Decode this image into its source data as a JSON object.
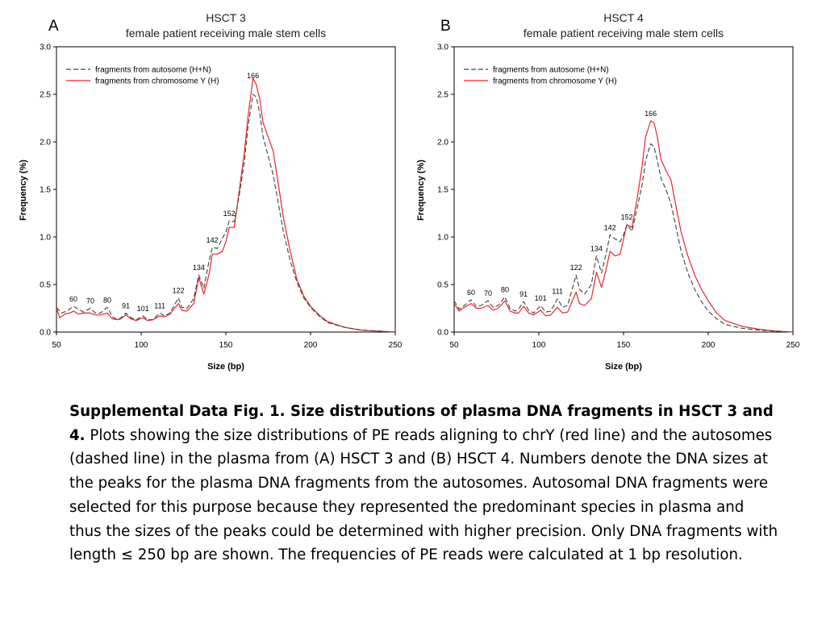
{
  "chart_data": [
    {
      "panel": "A",
      "type": "line",
      "title": "HSCT 3",
      "subtitle": "female patient receiving male stem cells",
      "xlabel": "Size (bp)",
      "ylabel": "Frequency (%)",
      "xlim": [
        50,
        250
      ],
      "ylim": [
        0,
        3.0
      ],
      "xticks": [
        50,
        100,
        150,
        200,
        250
      ],
      "yticks": [
        "0.0",
        "0.5",
        "1.0",
        "1.5",
        "2.0",
        "2.5",
        "3.0"
      ],
      "grid": false,
      "legend_position": "top-left",
      "series": [
        {
          "name": "fragments from autosome (H+N)",
          "color": "#404040",
          "dash": true,
          "points": [
            [
              50,
              0.26
            ],
            [
              53,
              0.2
            ],
            [
              56,
              0.22
            ],
            [
              60,
              0.27
            ],
            [
              63,
              0.24
            ],
            [
              66,
              0.21
            ],
            [
              70,
              0.25
            ],
            [
              73,
              0.2
            ],
            [
              76,
              0.2
            ],
            [
              80,
              0.26
            ],
            [
              83,
              0.16
            ],
            [
              86,
              0.13
            ],
            [
              88,
              0.15
            ],
            [
              91,
              0.2
            ],
            [
              94,
              0.15
            ],
            [
              97,
              0.13
            ],
            [
              101,
              0.17
            ],
            [
              104,
              0.13
            ],
            [
              107,
              0.13
            ],
            [
              111,
              0.2
            ],
            [
              114,
              0.17
            ],
            [
              117,
              0.2
            ],
            [
              122,
              0.36
            ],
            [
              124,
              0.26
            ],
            [
              127,
              0.25
            ],
            [
              131,
              0.35
            ],
            [
              134,
              0.6
            ],
            [
              137,
              0.46
            ],
            [
              140,
              0.74
            ],
            [
              142,
              0.89
            ],
            [
              145,
              0.88
            ],
            [
              148,
              0.99
            ],
            [
              150,
              1.05
            ],
            [
              152,
              1.17
            ],
            [
              155,
              1.16
            ],
            [
              158,
              1.45
            ],
            [
              161,
              1.8
            ],
            [
              163,
              2.15
            ],
            [
              166,
              2.5
            ],
            [
              168,
              2.47
            ],
            [
              170,
              2.3
            ],
            [
              172,
              2.05
            ],
            [
              175,
              1.85
            ],
            [
              178,
              1.65
            ],
            [
              181,
              1.35
            ],
            [
              184,
              1.05
            ],
            [
              188,
              0.75
            ],
            [
              192,
              0.52
            ],
            [
              196,
              0.36
            ],
            [
              200,
              0.26
            ],
            [
              205,
              0.17
            ],
            [
              210,
              0.1
            ],
            [
              220,
              0.05
            ],
            [
              230,
              0.02
            ],
            [
              240,
              0.01
            ],
            [
              250,
              0.0
            ]
          ]
        },
        {
          "name": "fragments from chromosome Y (H)",
          "color": "#e8262b",
          "dash": false,
          "points": [
            [
              50,
              0.25
            ],
            [
              52,
              0.15
            ],
            [
              55,
              0.19
            ],
            [
              58,
              0.2
            ],
            [
              60,
              0.22
            ],
            [
              63,
              0.19
            ],
            [
              66,
              0.2
            ],
            [
              70,
              0.2
            ],
            [
              73,
              0.18
            ],
            [
              76,
              0.18
            ],
            [
              80,
              0.2
            ],
            [
              83,
              0.14
            ],
            [
              86,
              0.13
            ],
            [
              88,
              0.14
            ],
            [
              91,
              0.18
            ],
            [
              94,
              0.14
            ],
            [
              97,
              0.12
            ],
            [
              101,
              0.15
            ],
            [
              104,
              0.12
            ],
            [
              107,
              0.13
            ],
            [
              111,
              0.17
            ],
            [
              114,
              0.16
            ],
            [
              117,
              0.19
            ],
            [
              122,
              0.3
            ],
            [
              124,
              0.23
            ],
            [
              127,
              0.22
            ],
            [
              131,
              0.3
            ],
            [
              134,
              0.57
            ],
            [
              137,
              0.4
            ],
            [
              140,
              0.6
            ],
            [
              142,
              0.82
            ],
            [
              145,
              0.82
            ],
            [
              148,
              0.85
            ],
            [
              150,
              0.95
            ],
            [
              152,
              1.1
            ],
            [
              155,
              1.1
            ],
            [
              158,
              1.5
            ],
            [
              161,
              1.9
            ],
            [
              163,
              2.25
            ],
            [
              166,
              2.67
            ],
            [
              168,
              2.6
            ],
            [
              170,
              2.45
            ],
            [
              172,
              2.2
            ],
            [
              175,
              2.05
            ],
            [
              178,
              1.9
            ],
            [
              181,
              1.55
            ],
            [
              184,
              1.2
            ],
            [
              188,
              0.85
            ],
            [
              192,
              0.55
            ],
            [
              196,
              0.38
            ],
            [
              200,
              0.27
            ],
            [
              205,
              0.18
            ],
            [
              210,
              0.11
            ],
            [
              220,
              0.05
            ],
            [
              230,
              0.02
            ],
            [
              240,
              0.01
            ],
            [
              250,
              0.0
            ]
          ]
        }
      ],
      "annotations": [
        [
          60,
          0.27,
          "60"
        ],
        [
          70,
          0.25,
          "70"
        ],
        [
          80,
          0.26,
          "80"
        ],
        [
          91,
          0.2,
          "91"
        ],
        [
          101,
          0.17,
          "101"
        ],
        [
          111,
          0.2,
          "111"
        ],
        [
          122,
          0.36,
          "122"
        ],
        [
          134,
          0.6,
          "134"
        ],
        [
          142,
          0.89,
          "142"
        ],
        [
          152,
          1.17,
          "152"
        ],
        [
          166,
          2.62,
          "166"
        ]
      ]
    },
    {
      "panel": "B",
      "type": "line",
      "title": "HSCT 4",
      "subtitle": "female patient receiving male stem cells",
      "xlabel": "Size (bp)",
      "ylabel": "Frequency (%)",
      "xlim": [
        50,
        250
      ],
      "ylim": [
        0,
        3.0
      ],
      "xticks": [
        50,
        100,
        150,
        200,
        250
      ],
      "yticks": [
        "0.0",
        "0.5",
        "1.0",
        "1.5",
        "2.0",
        "2.5",
        "3.0"
      ],
      "grid": false,
      "legend_position": "top-left",
      "series": [
        {
          "name": "fragments from autosome (H+N)",
          "color": "#404040",
          "dash": true,
          "points": [
            [
              50,
              0.33
            ],
            [
              53,
              0.24
            ],
            [
              56,
              0.28
            ],
            [
              60,
              0.34
            ],
            [
              63,
              0.27
            ],
            [
              66,
              0.28
            ],
            [
              70,
              0.33
            ],
            [
              73,
              0.26
            ],
            [
              76,
              0.28
            ],
            [
              80,
              0.37
            ],
            [
              83,
              0.25
            ],
            [
              86,
              0.22
            ],
            [
              88,
              0.24
            ],
            [
              91,
              0.32
            ],
            [
              94,
              0.23
            ],
            [
              97,
              0.2
            ],
            [
              101,
              0.28
            ],
            [
              104,
              0.21
            ],
            [
              107,
              0.22
            ],
            [
              111,
              0.35
            ],
            [
              114,
              0.26
            ],
            [
              117,
              0.28
            ],
            [
              122,
              0.6
            ],
            [
              124,
              0.45
            ],
            [
              127,
              0.4
            ],
            [
              131,
              0.5
            ],
            [
              134,
              0.8
            ],
            [
              137,
              0.62
            ],
            [
              140,
              0.85
            ],
            [
              142,
              1.02
            ],
            [
              145,
              0.98
            ],
            [
              148,
              0.95
            ],
            [
              150,
              1.02
            ],
            [
              152,
              1.13
            ],
            [
              155,
              1.06
            ],
            [
              158,
              1.3
            ],
            [
              161,
              1.55
            ],
            [
              163,
              1.8
            ],
            [
              166,
              1.98
            ],
            [
              168,
              1.95
            ],
            [
              170,
              1.8
            ],
            [
              172,
              1.62
            ],
            [
              175,
              1.5
            ],
            [
              178,
              1.35
            ],
            [
              181,
              1.1
            ],
            [
              184,
              0.85
            ],
            [
              188,
              0.62
            ],
            [
              192,
              0.45
            ],
            [
              196,
              0.32
            ],
            [
              200,
              0.22
            ],
            [
              205,
              0.14
            ],
            [
              210,
              0.08
            ],
            [
              220,
              0.04
            ],
            [
              230,
              0.02
            ],
            [
              240,
              0.01
            ],
            [
              250,
              0.0
            ]
          ]
        },
        {
          "name": "fragments from chromosome Y (H)",
          "color": "#e8262b",
          "dash": false,
          "points": [
            [
              50,
              0.3
            ],
            [
              53,
              0.22
            ],
            [
              56,
              0.26
            ],
            [
              60,
              0.3
            ],
            [
              63,
              0.25
            ],
            [
              66,
              0.25
            ],
            [
              70,
              0.28
            ],
            [
              73,
              0.23
            ],
            [
              76,
              0.25
            ],
            [
              80,
              0.33
            ],
            [
              83,
              0.22
            ],
            [
              86,
              0.2
            ],
            [
              88,
              0.2
            ],
            [
              91,
              0.27
            ],
            [
              94,
              0.2
            ],
            [
              97,
              0.18
            ],
            [
              101,
              0.23
            ],
            [
              104,
              0.17
            ],
            [
              107,
              0.18
            ],
            [
              111,
              0.26
            ],
            [
              114,
              0.2
            ],
            [
              117,
              0.21
            ],
            [
              122,
              0.42
            ],
            [
              124,
              0.3
            ],
            [
              127,
              0.28
            ],
            [
              131,
              0.35
            ],
            [
              134,
              0.63
            ],
            [
              137,
              0.47
            ],
            [
              140,
              0.68
            ],
            [
              142,
              0.85
            ],
            [
              145,
              0.8
            ],
            [
              148,
              0.82
            ],
            [
              150,
              0.98
            ],
            [
              152,
              1.13
            ],
            [
              155,
              1.1
            ],
            [
              158,
              1.4
            ],
            [
              161,
              1.75
            ],
            [
              163,
              2.05
            ],
            [
              166,
              2.22
            ],
            [
              168,
              2.2
            ],
            [
              170,
              2.05
            ],
            [
              172,
              1.82
            ],
            [
              175,
              1.7
            ],
            [
              178,
              1.6
            ],
            [
              181,
              1.32
            ],
            [
              184,
              1.05
            ],
            [
              188,
              0.8
            ],
            [
              192,
              0.6
            ],
            [
              196,
              0.45
            ],
            [
              200,
              0.33
            ],
            [
              205,
              0.2
            ],
            [
              210,
              0.12
            ],
            [
              220,
              0.06
            ],
            [
              230,
              0.03
            ],
            [
              240,
              0.01
            ],
            [
              250,
              0.0
            ]
          ]
        }
      ],
      "annotations": [
        [
          60,
          0.34,
          "60"
        ],
        [
          70,
          0.33,
          "70"
        ],
        [
          80,
          0.37,
          "80"
        ],
        [
          91,
          0.32,
          "91"
        ],
        [
          101,
          0.28,
          "101"
        ],
        [
          111,
          0.35,
          "111"
        ],
        [
          122,
          0.6,
          "122"
        ],
        [
          134,
          0.8,
          "134"
        ],
        [
          142,
          1.02,
          "142"
        ],
        [
          152,
          1.13,
          "152"
        ],
        [
          166,
          2.22,
          "166"
        ]
      ]
    }
  ],
  "panel_letters": [
    "A",
    "B"
  ],
  "caption": {
    "bold": "Supplemental Data Fig. 1. Size distributions of plasma DNA fragments in HSCT 3 and 4.",
    "body": " Plots showing the size distributions of PE reads aligning to chrY (red line) and the autosomes (dashed line) in the plasma from (A) HSCT 3 and (B) HSCT 4. Numbers denote the DNA sizes at the peaks for the plasma DNA fragments from the autosomes. Autosomal DNA fragments were selected for this purpose because they represented the predominant species in plasma and thus the sizes of the peaks could be determined with higher precision. Only DNA fragments with length ≤ 250 bp are shown. The frequencies of PE reads were calculated at 1 bp resolution."
  }
}
